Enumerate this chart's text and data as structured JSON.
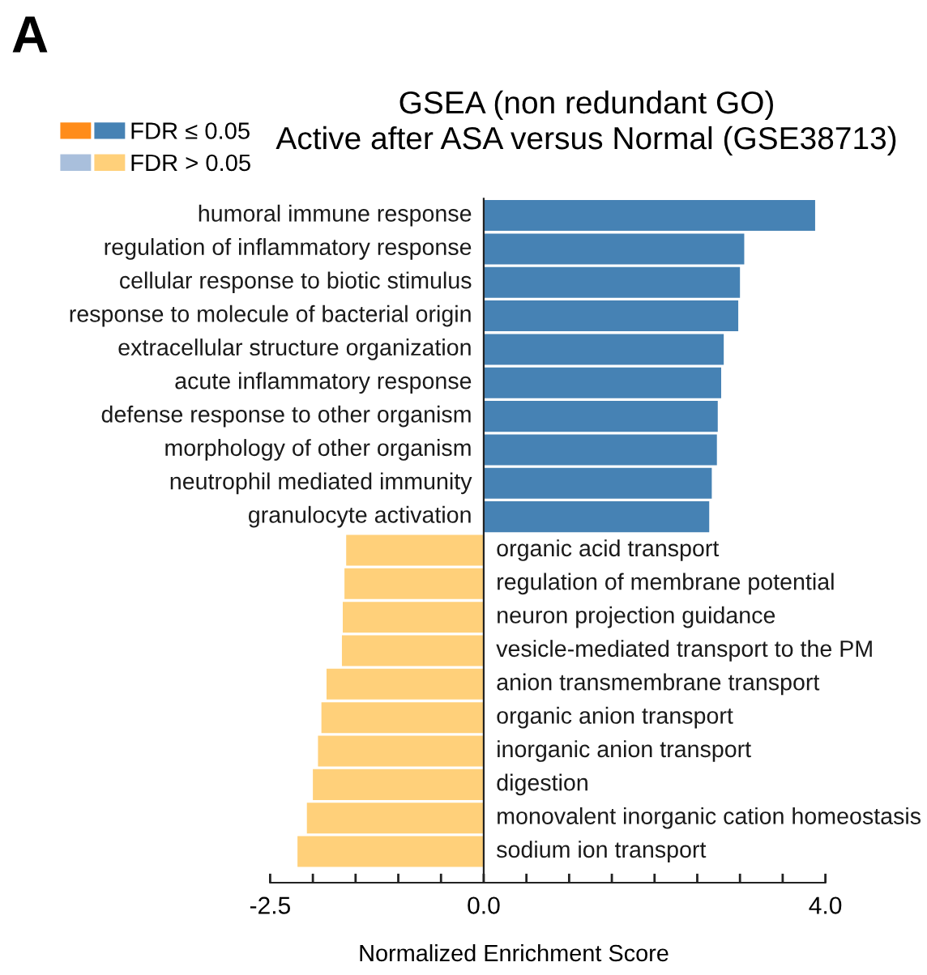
{
  "chart_data": {
    "type": "bar",
    "orientation": "horizontal",
    "title": "GSEA (non redundant GO)",
    "subtitle": "Active after ASA versus Normal (GSE38713)",
    "xlabel": "Normalized Enrichment Score",
    "annotations": [
      "A"
    ],
    "categories": [
      "humoral immune response",
      "regulation of inflammatory response",
      "cellular response to biotic stimulus",
      "response to molecule of bacterial origin",
      "extracellular structure organization",
      "acute inflammatory response",
      "defense response to other organism",
      "morphology of other organism",
      "neutrophil mediated immunity",
      "granulocyte activation",
      "organic acid transport",
      "regulation of membrane potential",
      "neuron projection guidance",
      "vesicle-mediated transport to the PM",
      "anion transmembrane transport",
      "organic anion transport",
      "inorganic anion transport",
      "digestion",
      "monovalent inorganic cation homeostasis",
      "sodium ion transport"
    ],
    "series": [
      {
        "color": "#ff8c1a",
        "values": [
          null,
          null,
          null,
          null,
          null,
          null,
          null,
          null,
          null,
          null,
          null,
          null,
          null,
          null,
          null,
          null,
          null,
          null,
          null,
          null
        ]
      },
      {
        "name": "FDR ≤ 0.05",
        "color": "#4682b4",
        "values": [
          3.88,
          3.05,
          3.0,
          2.98,
          2.81,
          2.78,
          2.74,
          2.73,
          2.67,
          2.64,
          null,
          null,
          null,
          null,
          null,
          null,
          null,
          null,
          null,
          null
        ]
      },
      {
        "color": "#a9bfdc",
        "values": [
          null,
          null,
          null,
          null,
          null,
          null,
          null,
          null,
          null,
          null,
          null,
          null,
          null,
          null,
          null,
          null,
          null,
          null,
          null,
          null
        ]
      },
      {
        "name": "FDR > 0.05",
        "color": "#ffd07a",
        "values": [
          null,
          null,
          null,
          null,
          null,
          null,
          null,
          null,
          null,
          null,
          -1.61,
          -1.63,
          -1.65,
          -1.66,
          -1.84,
          -1.9,
          -1.94,
          -2.0,
          -2.07,
          -2.18
        ]
      }
    ],
    "xlim": [
      -2.5,
      4.0
    ],
    "xticks": [
      -2.5,
      {
        "value": -2.0,
        "label": null
      },
      {
        "value": -1.5,
        "label": null
      },
      {
        "value": -1.0,
        "label": null
      },
      {
        "value": -0.5,
        "label": null
      },
      {
        "value": 0,
        "label": "0.0"
      },
      {
        "value": 0.5,
        "label": null
      },
      {
        "value": 1.0,
        "label": null
      },
      {
        "value": 1.5,
        "label": null
      },
      {
        "value": 2.0,
        "label": null
      },
      {
        "value": 2.5,
        "label": null
      },
      {
        "value": 3.0,
        "label": null
      },
      {
        "value": 3.5,
        "label": null
      },
      {
        "value": 4,
        "label": "4.0"
      }
    ],
    "tick_labels": "x",
    "grid": false,
    "legend": "top left"
  }
}
